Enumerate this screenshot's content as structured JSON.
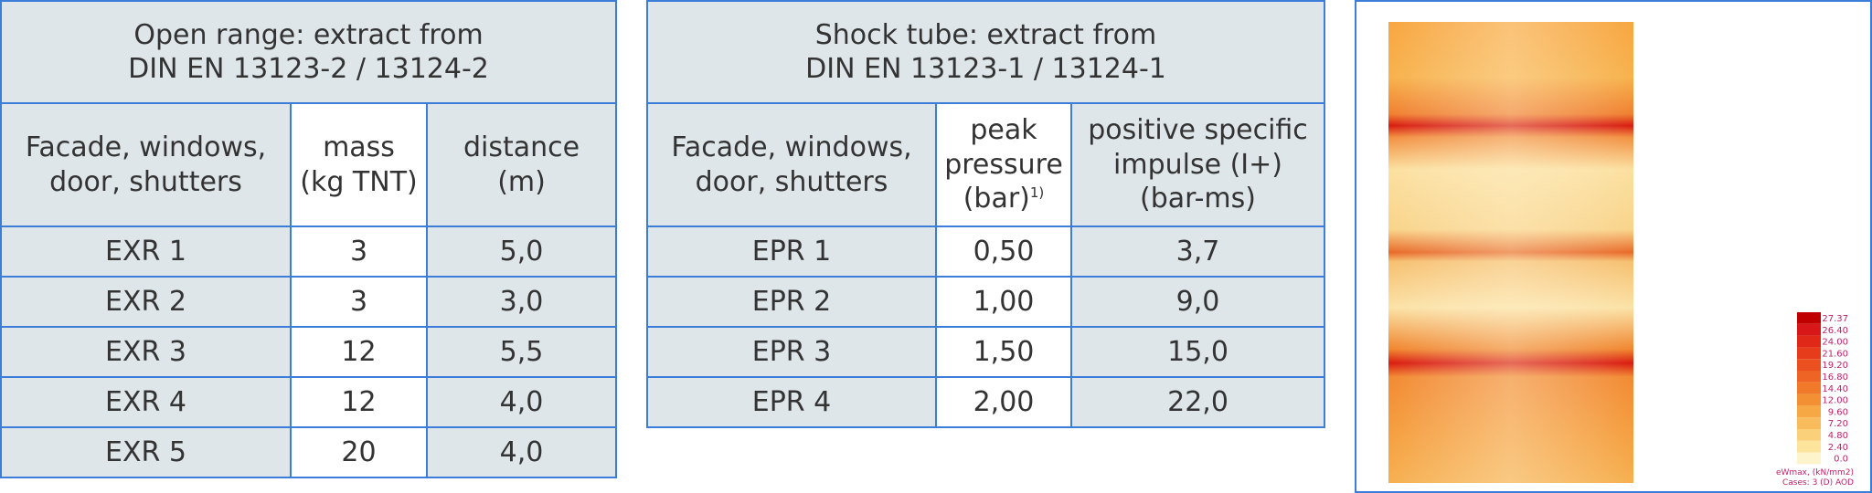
{
  "tables": [
    {
      "title_lines": [
        "Open range: extract from",
        "DIN EN 13123-2 / 13124-2"
      ],
      "header": [
        [
          "Facade, windows,",
          "door, shutters"
        ],
        [
          "mass",
          "(kg TNT)"
        ],
        [
          "distance",
          "(m)"
        ]
      ],
      "rows": [
        [
          "EXR 1",
          "3",
          "5,0"
        ],
        [
          "EXR 2",
          "3",
          "3,0"
        ],
        [
          "EXR 3",
          "12",
          "5,5"
        ],
        [
          "EXR 4",
          "12",
          "4,0"
        ],
        [
          "EXR 5",
          "20",
          "4,0"
        ]
      ]
    },
    {
      "title_lines": [
        "Shock tube: extract from",
        "DIN EN 13123-1 / 13124-1"
      ],
      "header": [
        [
          "Facade, windows,",
          "door, shutters"
        ],
        [
          "peak",
          "pressure",
          "(bar)"
        ],
        [
          "positive specific",
          "impulse (I+)",
          "(bar-ms)"
        ]
      ],
      "header_note": "1)",
      "rows": [
        [
          "EPR 1",
          "0,50",
          "3,7"
        ],
        [
          "EPR 2",
          "1,00",
          "9,0"
        ],
        [
          "EPR 3",
          "1,50",
          "15,0"
        ],
        [
          "EPR 4",
          "2,00",
          "22,0"
        ]
      ]
    }
  ],
  "contour": {
    "legend": [
      "27.37",
      "26.40",
      "24.00",
      "21.60",
      "19.20",
      "16.80",
      "14.40",
      "12.00",
      "9.60",
      "7.20",
      "4.80",
      "2.40",
      "0.0"
    ],
    "caption_lines": [
      "eWmax, (kN/mm2)",
      "Cases: 3 (D) AOD"
    ]
  }
}
